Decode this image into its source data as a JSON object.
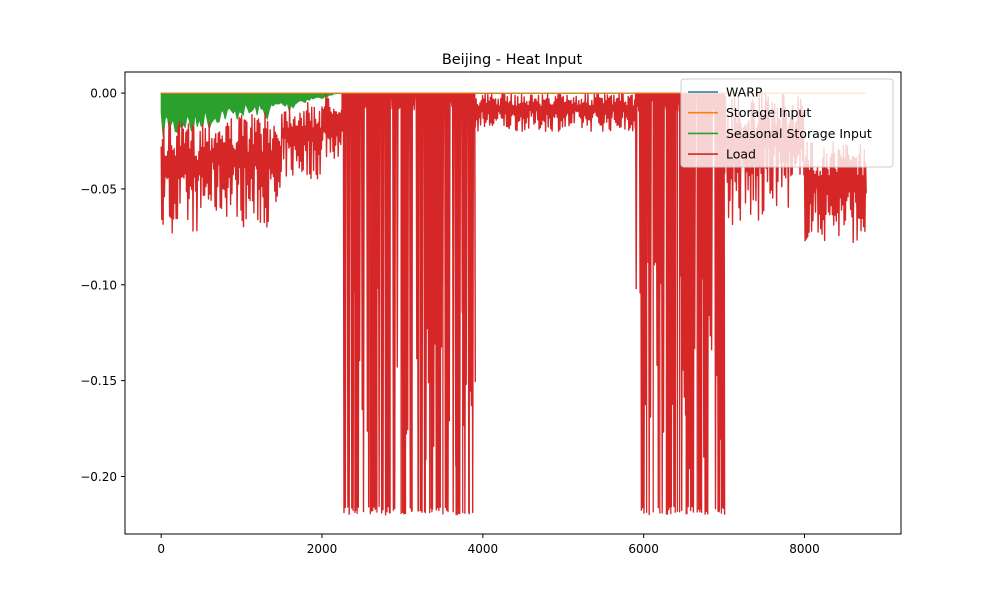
{
  "chart_data": {
    "type": "line",
    "title": "Beijing - Heat Input",
    "xlabel": "",
    "ylabel": "",
    "xlim": [
      -450,
      9200
    ],
    "ylim": [
      -0.23,
      0.011
    ],
    "x_ticks": [
      0,
      2000,
      4000,
      6000,
      8000
    ],
    "x_tick_labels": [
      "0",
      "2000",
      "4000",
      "6000",
      "8000"
    ],
    "y_ticks": [
      0.0,
      -0.05,
      -0.1,
      -0.15,
      -0.2
    ],
    "y_tick_labels": [
      "0.00",
      "−0.05",
      "−0.10",
      "−0.15",
      "−0.20"
    ],
    "grid": false,
    "legend_position": "top-right",
    "series": [
      {
        "name": "WARP",
        "color": "#1f77b4",
        "description": "constant at 0 over x 0-8760",
        "x": [
          0,
          8760
        ],
        "y": [
          0.0,
          0.0
        ]
      },
      {
        "name": "Storage Input",
        "color": "#ff7f0e",
        "x": [
          0,
          8760
        ],
        "y": [
          0.0,
          0.0
        ]
      },
      {
        "name": "Seasonal Storage Input",
        "color": "#2ca02c",
        "x": [
          0,
          100,
          200,
          300,
          400,
          500,
          600,
          700,
          800,
          900,
          1000,
          1100,
          1200,
          1300,
          1400,
          1500,
          1600,
          1700,
          1800,
          1900,
          2000,
          2100,
          2200,
          8760
        ],
        "y_min": [
          -0.025,
          -0.022,
          -0.024,
          -0.02,
          -0.025,
          -0.018,
          -0.02,
          -0.016,
          -0.015,
          -0.016,
          -0.012,
          -0.014,
          -0.012,
          -0.015,
          -0.01,
          -0.008,
          -0.01,
          -0.006,
          -0.005,
          -0.004,
          -0.003,
          -0.002,
          0.0,
          0.0
        ]
      },
      {
        "name": "Load",
        "color": "#d62728",
        "segments": [
          {
            "x_start": 0,
            "x_end": 500,
            "y_low": -0.073,
            "y_high": -0.015
          },
          {
            "x_start": 500,
            "x_end": 1000,
            "y_low": -0.065,
            "y_high": -0.012
          },
          {
            "x_start": 1000,
            "x_end": 1500,
            "y_low": -0.07,
            "y_high": -0.01
          },
          {
            "x_start": 1500,
            "x_end": 2000,
            "y_low": -0.045,
            "y_high": -0.005
          },
          {
            "x_start": 2000,
            "x_end": 2250,
            "y_low": -0.035,
            "y_high": 0.0
          },
          {
            "x_start": 2250,
            "x_end": 3900,
            "y_low": -0.22,
            "y_high": 0.0
          },
          {
            "x_start": 3900,
            "x_end": 5900,
            "y_low": -0.02,
            "y_high": 0.0
          },
          {
            "x_start": 5900,
            "x_end": 7000,
            "y_low": -0.22,
            "y_high": 0.0
          },
          {
            "x_start": 7000,
            "x_end": 7500,
            "y_low": -0.07,
            "y_high": 0.0
          },
          {
            "x_start": 7500,
            "x_end": 8000,
            "y_low": -0.06,
            "y_high": 0.0
          },
          {
            "x_start": 8000,
            "x_end": 8760,
            "y_low": -0.078,
            "y_high": -0.025
          }
        ]
      }
    ]
  }
}
